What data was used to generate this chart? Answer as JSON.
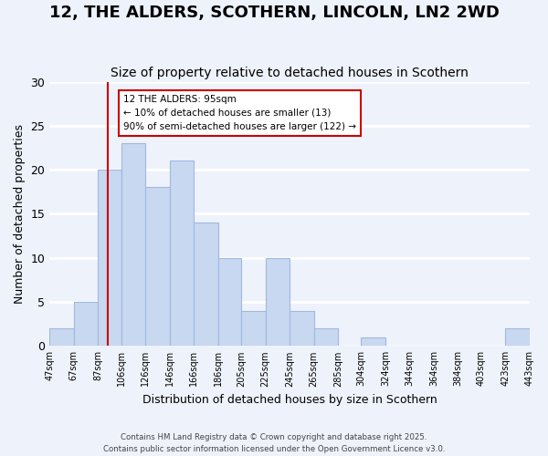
{
  "title": "12, THE ALDERS, SCOTHERN, LINCOLN, LN2 2WD",
  "subtitle": "Size of property relative to detached houses in Scothern",
  "xlabel": "Distribution of detached houses by size in Scothern",
  "ylabel": "Number of detached properties",
  "bin_edges": [
    47,
    67,
    87,
    106,
    126,
    146,
    166,
    186,
    205,
    225,
    245,
    265,
    285,
    304,
    324,
    344,
    364,
    384,
    403,
    423,
    443
  ],
  "bar_heights": [
    2,
    5,
    20,
    23,
    18,
    21,
    14,
    10,
    4,
    10,
    4,
    2,
    0,
    1,
    0,
    0,
    0,
    0,
    0,
    2,
    0
  ],
  "bar_color": "#c8d8f0",
  "bar_edge_color": "#a0b8e0",
  "property_size": 95,
  "red_line_color": "#cc0000",
  "annotation_title": "12 THE ALDERS: 95sqm",
  "annotation_line1": "← 10% of detached houses are smaller (13)",
  "annotation_line2": "90% of semi-detached houses are larger (122) →",
  "annotation_box_color": "#ffffff",
  "annotation_box_edge": "#cc0000",
  "ylim": [
    0,
    30
  ],
  "background_color": "#eef2fb",
  "grid_color": "#ffffff",
  "xtick_labels": [
    "47sqm",
    "67sqm",
    "87sqm",
    "106sqm",
    "126sqm",
    "146sqm",
    "166sqm",
    "186sqm",
    "205sqm",
    "225sqm",
    "245sqm",
    "265sqm",
    "285sqm",
    "304sqm",
    "324sqm",
    "344sqm",
    "364sqm",
    "384sqm",
    "403sqm",
    "423sqm",
    "443sqm"
  ],
  "footnote1": "Contains HM Land Registry data © Crown copyright and database right 2025.",
  "footnote2": "Contains public sector information licensed under the Open Government Licence v3.0.",
  "title_fontsize": 13,
  "subtitle_fontsize": 10
}
